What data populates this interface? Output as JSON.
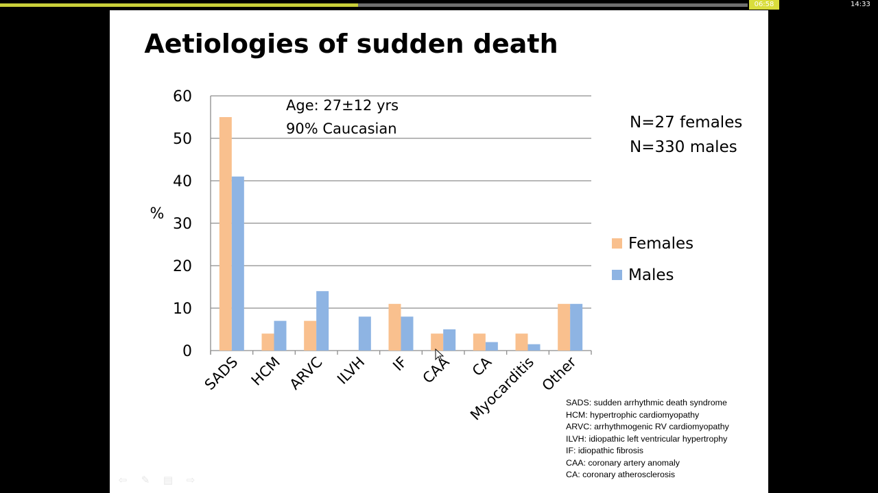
{
  "player": {
    "elapsed": "06:58",
    "total": "14:33",
    "progress": 0.479
  },
  "slide": {
    "title": "Aetiologies of sudden death",
    "info_lines": [
      "Age: 27±12 yrs",
      "90% Caucasian"
    ],
    "n_lines": [
      "N=27 females",
      "N=330 males"
    ],
    "abbreviations": [
      "SADS: sudden arrhythmic death syndrome",
      "HCM: hypertrophic cardiomyopathy",
      "ARVC: arrhythmogenic RV cardiomyopathy",
      "ILVH: idiopathic left ventricular hypertrophy",
      "IF: idiopathic fibrosis",
      "CAA: coronary artery anomaly",
      "CA: coronary atherosclerosis"
    ]
  },
  "chart_data": {
    "type": "bar",
    "title": "",
    "xlabel": "",
    "ylabel": "%",
    "ylim": [
      0,
      60
    ],
    "yticks": [
      0,
      10,
      20,
      30,
      40,
      50,
      60
    ],
    "grid": true,
    "legend_position": "right",
    "categories": [
      "SADS",
      "HCM",
      "ARVC",
      "ILVH",
      "IF",
      "CAA",
      "CA",
      "Myocarditis",
      "Other"
    ],
    "series": [
      {
        "name": "Females",
        "color": "#f9c08e",
        "values": [
          55,
          4,
          7,
          0,
          11,
          4,
          4,
          4,
          11
        ]
      },
      {
        "name": "Males",
        "color": "#8eb4e3",
        "values": [
          41,
          7,
          14,
          8,
          8,
          5,
          2,
          1.5,
          11
        ]
      }
    ]
  },
  "nav_icons": [
    "back-arrow-icon",
    "pen-icon",
    "menu-icon",
    "forward-arrow-icon"
  ]
}
